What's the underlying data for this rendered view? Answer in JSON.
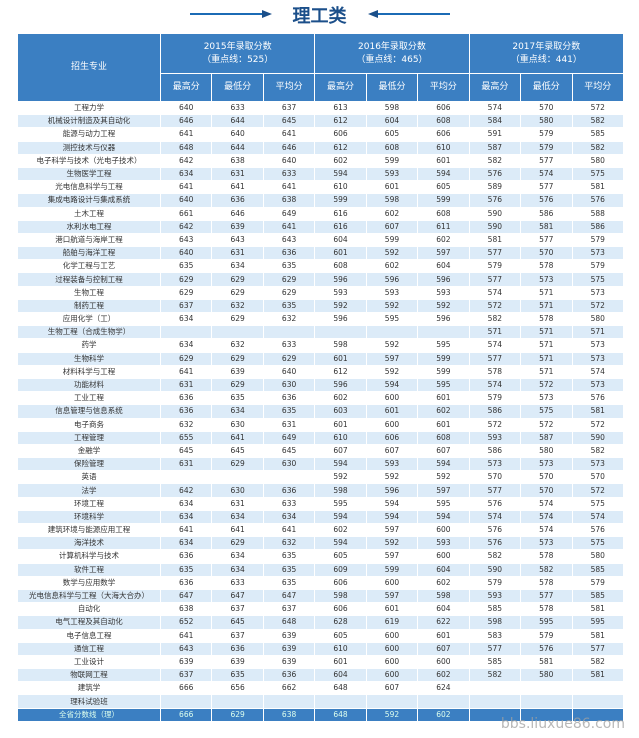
{
  "header": {
    "title": "理工类"
  },
  "table": {
    "head": {
      "major": "招生专业",
      "years": [
        "2015年录取分数",
        "2016年录取分数",
        "2017年录取分数"
      ],
      "lines": [
        "（重点线：525）",
        "（重点线：465）",
        "（重点线：441）"
      ],
      "sub": [
        "最高分",
        "最低分",
        "平均分"
      ]
    },
    "rows": [
      [
        "工程力学",
        640,
        633,
        637,
        613,
        598,
        606,
        574,
        570,
        572
      ],
      [
        "机械设计制造及其自动化",
        646,
        644,
        645,
        612,
        604,
        608,
        584,
        580,
        582
      ],
      [
        "能源与动力工程",
        641,
        640,
        641,
        606,
        605,
        606,
        591,
        579,
        585
      ],
      [
        "测控技术与仪器",
        648,
        644,
        646,
        612,
        608,
        610,
        587,
        579,
        582
      ],
      [
        "电子科学与技术（光电子技术）",
        642,
        638,
        640,
        602,
        599,
        601,
        582,
        577,
        580
      ],
      [
        "生物医学工程",
        634,
        631,
        633,
        594,
        593,
        594,
        576,
        574,
        575
      ],
      [
        "光电信息科学与工程",
        641,
        641,
        641,
        610,
        601,
        605,
        589,
        577,
        581
      ],
      [
        "集成电路设计与集成系统",
        640,
        636,
        638,
        599,
        598,
        599,
        576,
        576,
        576
      ],
      [
        "土木工程",
        661,
        646,
        649,
        616,
        602,
        608,
        590,
        586,
        588
      ],
      [
        "水利水电工程",
        642,
        639,
        641,
        616,
        607,
        611,
        590,
        581,
        586
      ],
      [
        "港口航道与海岸工程",
        643,
        643,
        643,
        604,
        599,
        602,
        581,
        577,
        579
      ],
      [
        "船舶与海洋工程",
        640,
        631,
        636,
        601,
        592,
        597,
        577,
        570,
        573
      ],
      [
        "化学工程与工艺",
        635,
        634,
        635,
        608,
        602,
        604,
        579,
        578,
        579
      ],
      [
        "过程装备与控制工程",
        629,
        629,
        629,
        596,
        596,
        596,
        577,
        573,
        575
      ],
      [
        "生物工程",
        629,
        629,
        629,
        593,
        593,
        593,
        574,
        571,
        573
      ],
      [
        "制药工程",
        637,
        632,
        635,
        592,
        592,
        592,
        572,
        571,
        572
      ],
      [
        "应用化学（工）",
        634,
        629,
        632,
        596,
        595,
        596,
        582,
        578,
        580
      ],
      [
        "生物工程（合成生物学）",
        null,
        null,
        null,
        null,
        null,
        null,
        571,
        571,
        571
      ],
      [
        "药学",
        634,
        632,
        633,
        598,
        592,
        595,
        574,
        571,
        573
      ],
      [
        "生物科学",
        629,
        629,
        629,
        601,
        597,
        599,
        577,
        571,
        573
      ],
      [
        "材料科学与工程",
        641,
        639,
        640,
        612,
        592,
        599,
        578,
        571,
        574
      ],
      [
        "功能材料",
        631,
        629,
        630,
        596,
        594,
        595,
        574,
        572,
        573
      ],
      [
        "工业工程",
        636,
        635,
        636,
        602,
        600,
        601,
        579,
        573,
        576
      ],
      [
        "信息管理与信息系统",
        636,
        634,
        635,
        603,
        601,
        602,
        586,
        575,
        581
      ],
      [
        "电子商务",
        632,
        630,
        631,
        601,
        600,
        601,
        572,
        572,
        572
      ],
      [
        "工程管理",
        655,
        641,
        649,
        610,
        606,
        608,
        593,
        587,
        590
      ],
      [
        "金融学",
        645,
        645,
        645,
        607,
        607,
        607,
        586,
        580,
        582
      ],
      [
        "保险管理",
        631,
        629,
        630,
        594,
        593,
        594,
        573,
        573,
        573
      ],
      [
        "英语",
        null,
        null,
        null,
        592,
        592,
        592,
        570,
        570,
        570
      ],
      [
        "法学",
        642,
        630,
        636,
        598,
        596,
        597,
        577,
        570,
        572
      ],
      [
        "环境工程",
        634,
        631,
        633,
        595,
        594,
        595,
        576,
        574,
        575
      ],
      [
        "环境科学",
        634,
        634,
        634,
        594,
        594,
        594,
        574,
        574,
        574
      ],
      [
        "建筑环境与能源应用工程",
        641,
        641,
        641,
        602,
        597,
        600,
        576,
        574,
        576
      ],
      [
        "海洋技术",
        634,
        629,
        632,
        594,
        592,
        593,
        576,
        573,
        575
      ],
      [
        "计算机科学与技术",
        636,
        634,
        635,
        605,
        597,
        600,
        582,
        578,
        580
      ],
      [
        "软件工程",
        635,
        634,
        635,
        609,
        599,
        604,
        590,
        582,
        585
      ],
      [
        "数学与应用数学",
        636,
        633,
        635,
        606,
        600,
        602,
        579,
        578,
        579
      ],
      [
        "光电信息科学与工程（大海大合办）",
        647,
        647,
        647,
        598,
        597,
        598,
        593,
        577,
        585
      ],
      [
        "自动化",
        638,
        637,
        637,
        606,
        601,
        604,
        585,
        578,
        581
      ],
      [
        "电气工程及其自动化",
        652,
        645,
        648,
        628,
        619,
        622,
        598,
        595,
        595
      ],
      [
        "电子信息工程",
        641,
        637,
        639,
        605,
        600,
        601,
        583,
        579,
        581
      ],
      [
        "通信工程",
        643,
        636,
        639,
        610,
        600,
        607,
        577,
        576,
        577
      ],
      [
        "工业设计",
        639,
        639,
        639,
        601,
        600,
        600,
        585,
        581,
        582
      ],
      [
        "物联网工程",
        637,
        635,
        636,
        604,
        600,
        602,
        582,
        580,
        581
      ],
      [
        "建筑学",
        666,
        656,
        662,
        648,
        607,
        624,
        null,
        null,
        null
      ],
      [
        "理科试验班",
        null,
        null,
        null,
        null,
        null,
        null,
        null,
        null,
        null
      ],
      [
        "全省分数线（理）",
        666,
        629,
        638,
        648,
        592,
        602,
        null,
        null,
        null
      ]
    ]
  },
  "watermark": "bbs.liuxue86.com"
}
